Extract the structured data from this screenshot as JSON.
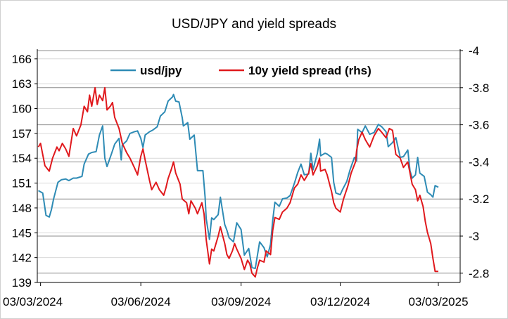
{
  "chart_data": {
    "type": "line",
    "title": "USD/JPY and yield spreads",
    "xlabel": "",
    "ylabel": "",
    "x_tick_labels": [
      "03/03/2024",
      "03/06/2024",
      "03/09/2024",
      "03/12/2024",
      "03/03/2025"
    ],
    "x_ticks": [
      "2024-03-03",
      "2024-06-03",
      "2024-09-03",
      "2024-12-03",
      "2025-03-03"
    ],
    "ylim_left": [
      139,
      167
    ],
    "y_ticks_left": [
      139,
      142,
      145,
      148,
      151,
      154,
      157,
      160,
      163,
      166
    ],
    "ylim_right": [
      -2.75,
      -4.0
    ],
    "y_ticks_right": [
      -4,
      -3.8,
      -3.6,
      -3.4,
      -3.2,
      -3,
      -2.8
    ],
    "right_axis_tick_labels": [
      "-4",
      "-3.8",
      "-3.6",
      "-3.4",
      "-3.2",
      "-3",
      "-2.8"
    ],
    "right_axis_inverted": true,
    "grid": "horizontal",
    "legend_position": "top",
    "series": [
      {
        "name": "usd/jpy",
        "axis": "left",
        "color": "#2E8BB5",
        "points": [
          [
            "2024-03-01",
            150.1
          ],
          [
            "2024-03-05",
            149.8
          ],
          [
            "2024-03-08",
            147.1
          ],
          [
            "2024-03-11",
            146.9
          ],
          [
            "2024-03-13",
            147.8
          ],
          [
            "2024-03-15",
            149.1
          ],
          [
            "2024-03-19",
            151.1
          ],
          [
            "2024-03-22",
            151.4
          ],
          [
            "2024-03-26",
            151.5
          ],
          [
            "2024-03-29",
            151.3
          ],
          [
            "2024-04-02",
            151.6
          ],
          [
            "2024-04-05",
            151.6
          ],
          [
            "2024-04-10",
            151.8
          ],
          [
            "2024-04-12",
            153.3
          ],
          [
            "2024-04-16",
            154.5
          ],
          [
            "2024-04-19",
            154.7
          ],
          [
            "2024-04-23",
            154.8
          ],
          [
            "2024-04-26",
            156.8
          ],
          [
            "2024-04-29",
            157.9
          ],
          [
            "2024-05-01",
            154.0
          ],
          [
            "2024-05-03",
            153.0
          ],
          [
            "2024-05-07",
            154.5
          ],
          [
            "2024-05-10",
            155.7
          ],
          [
            "2024-05-14",
            156.4
          ],
          [
            "2024-05-16",
            153.8
          ],
          [
            "2024-05-17",
            155.6
          ],
          [
            "2024-05-21",
            156.1
          ],
          [
            "2024-05-24",
            157.0
          ],
          [
            "2024-05-28",
            157.2
          ],
          [
            "2024-05-31",
            157.3
          ],
          [
            "2024-06-03",
            156.4
          ],
          [
            "2024-06-05",
            155.3
          ],
          [
            "2024-06-07",
            156.8
          ],
          [
            "2024-06-11",
            157.2
          ],
          [
            "2024-06-14",
            157.4
          ],
          [
            "2024-06-18",
            157.8
          ],
          [
            "2024-06-21",
            159.1
          ],
          [
            "2024-06-25",
            159.6
          ],
          [
            "2024-06-28",
            160.9
          ],
          [
            "2024-07-02",
            161.4
          ],
          [
            "2024-07-03",
            161.7
          ],
          [
            "2024-07-05",
            160.9
          ],
          [
            "2024-07-08",
            160.8
          ],
          [
            "2024-07-11",
            158.9
          ],
          [
            "2024-07-12",
            157.9
          ],
          [
            "2024-07-16",
            158.3
          ],
          [
            "2024-07-18",
            156.3
          ],
          [
            "2024-07-22",
            156.8
          ],
          [
            "2024-07-25",
            152.5
          ],
          [
            "2024-07-30",
            152.5
          ],
          [
            "2024-08-01",
            149.3
          ],
          [
            "2024-08-02",
            146.7
          ],
          [
            "2024-08-05",
            144.2
          ],
          [
            "2024-08-07",
            146.8
          ],
          [
            "2024-08-09",
            146.6
          ],
          [
            "2024-08-13",
            147.2
          ],
          [
            "2024-08-15",
            149.3
          ],
          [
            "2024-08-19",
            146.0
          ],
          [
            "2024-08-21",
            145.3
          ],
          [
            "2024-08-23",
            144.4
          ],
          [
            "2024-08-27",
            143.9
          ],
          [
            "2024-08-30",
            146.2
          ],
          [
            "2024-09-03",
            145.4
          ],
          [
            "2024-09-06",
            142.3
          ],
          [
            "2024-09-10",
            143.1
          ],
          [
            "2024-09-13",
            140.8
          ],
          [
            "2024-09-16",
            140.7
          ],
          [
            "2024-09-18",
            142.3
          ],
          [
            "2024-09-20",
            143.9
          ],
          [
            "2024-09-24",
            143.2
          ],
          [
            "2024-09-27",
            142.1
          ],
          [
            "2024-09-30",
            143.6
          ],
          [
            "2024-10-02",
            146.5
          ],
          [
            "2024-10-04",
            148.7
          ],
          [
            "2024-10-08",
            148.2
          ],
          [
            "2024-10-11",
            149.1
          ],
          [
            "2024-10-15",
            149.2
          ],
          [
            "2024-10-18",
            149.5
          ],
          [
            "2024-10-22",
            151.0
          ],
          [
            "2024-10-25",
            152.3
          ],
          [
            "2024-10-28",
            153.3
          ],
          [
            "2024-10-31",
            152.0
          ],
          [
            "2024-11-04",
            152.1
          ],
          [
            "2024-11-06",
            154.6
          ],
          [
            "2024-11-08",
            152.6
          ],
          [
            "2024-11-12",
            154.6
          ],
          [
            "2024-11-14",
            156.3
          ],
          [
            "2024-11-15",
            154.3
          ],
          [
            "2024-11-19",
            154.6
          ],
          [
            "2024-11-21",
            154.5
          ],
          [
            "2024-11-25",
            154.1
          ],
          [
            "2024-11-27",
            151.1
          ],
          [
            "2024-11-29",
            149.8
          ],
          [
            "2024-12-03",
            149.6
          ],
          [
            "2024-12-05",
            150.2
          ],
          [
            "2024-12-09",
            151.2
          ],
          [
            "2024-12-12",
            152.6
          ],
          [
            "2024-12-16",
            154.1
          ],
          [
            "2024-12-18",
            153.7
          ],
          [
            "2024-12-19",
            157.5
          ],
          [
            "2024-12-23",
            157.1
          ],
          [
            "2024-12-26",
            157.9
          ],
          [
            "2024-12-30",
            156.9
          ],
          [
            "2025-01-03",
            157.1
          ],
          [
            "2025-01-07",
            158.1
          ],
          [
            "2025-01-10",
            157.8
          ],
          [
            "2025-01-14",
            157.2
          ],
          [
            "2025-01-16",
            155.4
          ],
          [
            "2025-01-20",
            155.9
          ],
          [
            "2025-01-23",
            156.5
          ],
          [
            "2025-01-27",
            154.1
          ],
          [
            "2025-01-30",
            154.2
          ],
          [
            "2025-02-03",
            155.0
          ],
          [
            "2025-02-05",
            152.5
          ],
          [
            "2025-02-07",
            151.6
          ],
          [
            "2025-02-10",
            152.0
          ],
          [
            "2025-02-12",
            154.1
          ],
          [
            "2025-02-14",
            152.2
          ],
          [
            "2025-02-18",
            151.8
          ],
          [
            "2025-02-21",
            149.9
          ],
          [
            "2025-02-24",
            149.6
          ],
          [
            "2025-02-26",
            149.3
          ],
          [
            "2025-02-28",
            150.7
          ],
          [
            "2025-03-03",
            150.5
          ]
        ]
      },
      {
        "name": "10y yield spread (rhs)",
        "axis": "right",
        "color": "#E0191D",
        "points": [
          [
            "2024-03-01",
            -3.48
          ],
          [
            "2024-03-03",
            -3.5
          ],
          [
            "2024-03-05",
            -3.44
          ],
          [
            "2024-03-07",
            -3.38
          ],
          [
            "2024-03-11",
            -3.35
          ],
          [
            "2024-03-14",
            -3.42
          ],
          [
            "2024-03-18",
            -3.48
          ],
          [
            "2024-03-20",
            -3.46
          ],
          [
            "2024-03-23",
            -3.5
          ],
          [
            "2024-03-26",
            -3.47
          ],
          [
            "2024-03-29",
            -3.43
          ],
          [
            "2024-04-02",
            -3.58
          ],
          [
            "2024-04-05",
            -3.54
          ],
          [
            "2024-04-09",
            -3.6
          ],
          [
            "2024-04-12",
            -3.7
          ],
          [
            "2024-04-15",
            -3.67
          ],
          [
            "2024-04-17",
            -3.76
          ],
          [
            "2024-04-19",
            -3.7
          ],
          [
            "2024-04-22",
            -3.8
          ],
          [
            "2024-04-24",
            -3.71
          ],
          [
            "2024-04-26",
            -3.76
          ],
          [
            "2024-04-29",
            -3.73
          ],
          [
            "2024-05-01",
            -3.8
          ],
          [
            "2024-05-03",
            -3.68
          ],
          [
            "2024-05-06",
            -3.7
          ],
          [
            "2024-05-08",
            -3.72
          ],
          [
            "2024-05-10",
            -3.64
          ],
          [
            "2024-05-14",
            -3.58
          ],
          [
            "2024-05-17",
            -3.5
          ],
          [
            "2024-05-21",
            -3.45
          ],
          [
            "2024-05-24",
            -3.42
          ],
          [
            "2024-05-28",
            -3.37
          ],
          [
            "2024-05-31",
            -3.33
          ],
          [
            "2024-06-03",
            -3.43
          ],
          [
            "2024-06-05",
            -3.47
          ],
          [
            "2024-06-07",
            -3.41
          ],
          [
            "2024-06-11",
            -3.3
          ],
          [
            "2024-06-13",
            -3.25
          ],
          [
            "2024-06-17",
            -3.29
          ],
          [
            "2024-06-20",
            -3.25
          ],
          [
            "2024-06-24",
            -3.22
          ],
          [
            "2024-06-26",
            -3.26
          ],
          [
            "2024-06-28",
            -3.31
          ],
          [
            "2024-07-01",
            -3.36
          ],
          [
            "2024-07-03",
            -3.4
          ],
          [
            "2024-07-05",
            -3.34
          ],
          [
            "2024-07-09",
            -3.28
          ],
          [
            "2024-07-11",
            -3.2
          ],
          [
            "2024-07-15",
            -3.18
          ],
          [
            "2024-07-17",
            -3.12
          ],
          [
            "2024-07-19",
            -3.19
          ],
          [
            "2024-07-23",
            -3.15
          ],
          [
            "2024-07-25",
            -3.12
          ],
          [
            "2024-07-29",
            -3.18
          ],
          [
            "2024-07-31",
            -3.12
          ],
          [
            "2024-08-02",
            -2.98
          ],
          [
            "2024-08-05",
            -2.85
          ],
          [
            "2024-08-07",
            -2.93
          ],
          [
            "2024-08-09",
            -2.92
          ],
          [
            "2024-08-13",
            -3.0
          ],
          [
            "2024-08-15",
            -3.05
          ],
          [
            "2024-08-19",
            -2.96
          ],
          [
            "2024-08-21",
            -2.9
          ],
          [
            "2024-08-23",
            -2.88
          ],
          [
            "2024-08-26",
            -2.92
          ],
          [
            "2024-08-28",
            -2.96
          ],
          [
            "2024-08-30",
            -2.93
          ],
          [
            "2024-09-03",
            -2.88
          ],
          [
            "2024-09-06",
            -2.82
          ],
          [
            "2024-09-09",
            -2.87
          ],
          [
            "2024-09-11",
            -2.85
          ],
          [
            "2024-09-13",
            -2.8
          ],
          [
            "2024-09-16",
            -2.78
          ],
          [
            "2024-09-18",
            -2.83
          ],
          [
            "2024-09-20",
            -2.87
          ],
          [
            "2024-09-24",
            -2.86
          ],
          [
            "2024-09-26",
            -2.92
          ],
          [
            "2024-09-30",
            -2.9
          ],
          [
            "2024-10-02",
            -3.03
          ],
          [
            "2024-10-04",
            -3.1
          ],
          [
            "2024-10-08",
            -3.09
          ],
          [
            "2024-10-11",
            -3.13
          ],
          [
            "2024-10-15",
            -3.15
          ],
          [
            "2024-10-18",
            -3.18
          ],
          [
            "2024-10-22",
            -3.26
          ],
          [
            "2024-10-25",
            -3.28
          ],
          [
            "2024-10-28",
            -3.33
          ],
          [
            "2024-10-31",
            -3.3
          ],
          [
            "2024-11-04",
            -3.34
          ],
          [
            "2024-11-06",
            -3.39
          ],
          [
            "2024-11-08",
            -3.33
          ],
          [
            "2024-11-12",
            -3.38
          ],
          [
            "2024-11-14",
            -3.42
          ],
          [
            "2024-11-15",
            -3.35
          ],
          [
            "2024-11-19",
            -3.36
          ],
          [
            "2024-11-21",
            -3.33
          ],
          [
            "2024-11-25",
            -3.24
          ],
          [
            "2024-11-27",
            -3.18
          ],
          [
            "2024-11-29",
            -3.15
          ],
          [
            "2024-12-03",
            -3.13
          ],
          [
            "2024-12-06",
            -3.2
          ],
          [
            "2024-12-10",
            -3.27
          ],
          [
            "2024-12-13",
            -3.34
          ],
          [
            "2024-12-17",
            -3.4
          ],
          [
            "2024-12-18",
            -3.46
          ],
          [
            "2024-12-20",
            -3.52
          ],
          [
            "2024-12-23",
            -3.56
          ],
          [
            "2024-12-26",
            -3.52
          ],
          [
            "2024-12-30",
            -3.48
          ],
          [
            "2025-01-03",
            -3.54
          ],
          [
            "2025-01-07",
            -3.58
          ],
          [
            "2025-01-10",
            -3.56
          ],
          [
            "2025-01-14",
            -3.53
          ],
          [
            "2025-01-17",
            -3.58
          ],
          [
            "2025-01-20",
            -3.57
          ],
          [
            "2025-01-23",
            -3.44
          ],
          [
            "2025-01-27",
            -3.42
          ],
          [
            "2025-01-30",
            -3.37
          ],
          [
            "2025-02-03",
            -3.4
          ],
          [
            "2025-02-05",
            -3.34
          ],
          [
            "2025-02-07",
            -3.28
          ],
          [
            "2025-02-10",
            -3.25
          ],
          [
            "2025-02-12",
            -3.19
          ],
          [
            "2025-02-14",
            -3.22
          ],
          [
            "2025-02-17",
            -3.16
          ],
          [
            "2025-02-19",
            -3.08
          ],
          [
            "2025-02-21",
            -3.02
          ],
          [
            "2025-02-24",
            -2.96
          ],
          [
            "2025-02-26",
            -2.88
          ],
          [
            "2025-02-28",
            -2.81
          ],
          [
            "2025-03-03",
            -2.81
          ]
        ]
      }
    ]
  }
}
